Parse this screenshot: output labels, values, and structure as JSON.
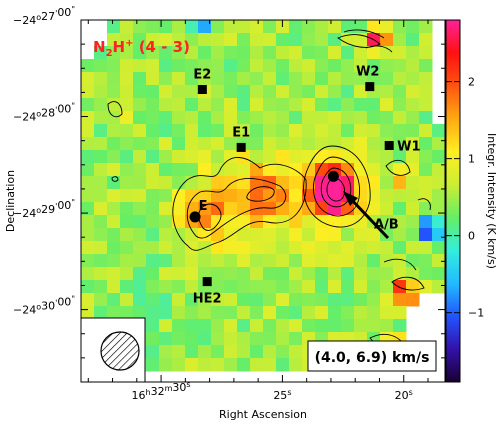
{
  "chart_data": {
    "type": "heatmap",
    "title": "N2H+ (4 - 3)",
    "title_parts": {
      "base": "N",
      "sub": "2",
      "mid": "H",
      "sup": "+",
      "rest": " (4 - 3)"
    },
    "velocity_label": "(4.0, 6.9) km/s",
    "xlabel": "Right Ascension",
    "ylabel": "Declination",
    "colorbar_label": "Integr. Intensity (K km/s)",
    "colorbar_range": [
      -1.9,
      2.8
    ],
    "colorbar_ticks": [
      {
        "value": -1,
        "label": "−1"
      },
      {
        "value": 0,
        "label": "0"
      },
      {
        "value": 1,
        "label": "1"
      },
      {
        "value": 2,
        "label": "2"
      }
    ],
    "x_ticks": [
      {
        "ra_sec": 30,
        "label_parts": [
          "16",
          "h",
          "32",
          "m",
          "30",
          "s"
        ]
      },
      {
        "ra_sec": 25,
        "label_parts": [
          "25",
          "s"
        ]
      },
      {
        "ra_sec": 20,
        "label_parts": [
          "20",
          "s"
        ]
      }
    ],
    "x_range_ra_sec": [
      33.3,
      18.3
    ],
    "y_ticks": [
      {
        "dec_min": 27.0,
        "label_parts": [
          "−24",
          "o",
          "27",
          "'",
          "00",
          "\""
        ]
      },
      {
        "dec_min": 28.0,
        "label_parts": [
          "−24",
          "o",
          "28",
          "'",
          "00",
          "\""
        ]
      },
      {
        "dec_min": 29.0,
        "label_parts": [
          "−24",
          "o",
          "29",
          "'",
          "00",
          "\""
        ]
      },
      {
        "dec_min": 30.0,
        "label_parts": [
          "−24",
          "o",
          "30",
          "'",
          "00",
          "\""
        ]
      }
    ],
    "y_range_dec_min": [
      27.0,
      30.75
    ],
    "sources": [
      {
        "label": "E2",
        "ra_sec": 28.3,
        "dec_min": 27.72,
        "marker": "square"
      },
      {
        "label": "W2",
        "ra_sec": 21.4,
        "dec_min": 27.69,
        "marker": "square"
      },
      {
        "label": "E1",
        "ra_sec": 26.7,
        "dec_min": 28.32,
        "marker": "square"
      },
      {
        "label": "W1",
        "ra_sec": 20.6,
        "dec_min": 28.3,
        "marker": "square"
      },
      {
        "label": "E",
        "ra_sec": 28.6,
        "dec_min": 29.04,
        "marker": "circle"
      },
      {
        "label": "A/B",
        "ra_sec": 22.9,
        "dec_min": 28.62,
        "marker": "circle"
      },
      {
        "label": "HE2",
        "ra_sec": 28.1,
        "dec_min": 29.71,
        "marker": "square"
      }
    ],
    "beam": "hatched circle, lower-left",
    "colormap": [
      "#1a0033",
      "#3311aa",
      "#2255ff",
      "#22bbff",
      "#33eedd",
      "#66ee66",
      "#ccee33",
      "#ffee22",
      "#ffaa11",
      "#ff5511",
      "#ff1111",
      "#ff2299"
    ],
    "legend": "none"
  }
}
